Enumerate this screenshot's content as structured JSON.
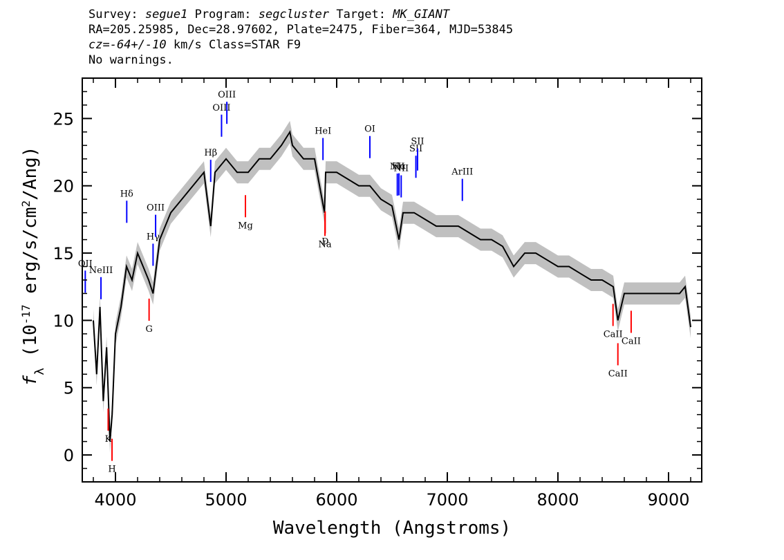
{
  "header": {
    "survey_label": "Survey:",
    "survey": "segue1",
    "program_label": "Program:",
    "program": "segcluster",
    "target_label": "Target:",
    "target": "MK_GIANT",
    "line2": "RA=205.25985, Dec=28.97602, Plate=2475, Fiber=364, MJD=53845",
    "cz_label": "cz=",
    "cz_value": "-64+/-10",
    "cz_rest": " km/s Class=STAR F9",
    "line4": "No warnings."
  },
  "chart_data": {
    "type": "line",
    "xlabel": "Wavelength (Angstroms)",
    "ylabel": "f_λ (10^-17 erg/s/cm^2/Ang)",
    "xlim": [
      3700,
      9300
    ],
    "ylim": [
      -2,
      28
    ],
    "xticks": [
      4000,
      5000,
      6000,
      7000,
      8000,
      9000
    ],
    "yticks": [
      0,
      5,
      10,
      15,
      20,
      25
    ],
    "grid": false,
    "colors": {
      "flux": "#000000",
      "error_band": "#c0c0c0",
      "emission": "#0000ff",
      "absorption": "#ff0000"
    },
    "series": [
      {
        "name": "flux",
        "x": [
          3800,
          3830,
          3860,
          3890,
          3920,
          3950,
          3970,
          4000,
          4050,
          4100,
          4150,
          4200,
          4250,
          4300,
          4340,
          4400,
          4450,
          4500,
          4600,
          4700,
          4800,
          4861,
          4900,
          5000,
          5100,
          5200,
          5300,
          5400,
          5500,
          5577,
          5600,
          5700,
          5800,
          5890,
          5900,
          6000,
          6100,
          6200,
          6300,
          6400,
          6500,
          6563,
          6600,
          6700,
          6800,
          6900,
          7000,
          7100,
          7200,
          7300,
          7400,
          7500,
          7600,
          7700,
          7800,
          7900,
          8000,
          8100,
          8200,
          8300,
          8400,
          8500,
          8542,
          8600,
          8700,
          8800,
          8900,
          9000,
          9100,
          9150,
          9200
        ],
        "y": [
          10,
          6,
          11,
          4,
          8,
          1,
          3,
          9,
          11,
          14,
          13,
          15,
          14,
          13,
          12,
          16,
          17,
          18,
          19,
          20,
          21,
          17,
          21,
          22,
          21,
          21,
          22,
          22,
          23,
          24,
          23,
          22,
          22,
          18,
          21,
          21,
          20.5,
          20,
          20,
          19,
          18.5,
          16,
          18,
          18,
          17.5,
          17,
          17,
          17,
          16.5,
          16,
          16,
          15.5,
          14,
          15,
          15,
          14.5,
          14,
          14,
          13.5,
          13,
          13,
          12.5,
          10,
          12,
          12,
          12,
          12,
          12,
          12,
          12.5,
          9.5
        ]
      }
    ],
    "emission_lines": [
      {
        "label": "OII",
        "wave": 3727
      },
      {
        "label": "NeIII",
        "wave": 3869
      },
      {
        "label": "Hδ",
        "wave": 4102
      },
      {
        "label": "Hγ",
        "wave": 4340
      },
      {
        "label": "OIII",
        "wave": 4363
      },
      {
        "label": "Hβ",
        "wave": 4861
      },
      {
        "label": "OIII",
        "wave": 4959
      },
      {
        "label": "OIII",
        "wave": 5007
      },
      {
        "label": "HeI",
        "wave": 5876
      },
      {
        "label": "OI",
        "wave": 6300
      },
      {
        "label": "NII",
        "wave": 6548
      },
      {
        "label": "Hα",
        "wave": 6563
      },
      {
        "label": "NII",
        "wave": 6583
      },
      {
        "label": "SII",
        "wave": 6716
      },
      {
        "label": "SII",
        "wave": 6731
      },
      {
        "label": "ArIII",
        "wave": 7136
      }
    ],
    "absorption_lines": [
      {
        "label": "K",
        "wave": 3934
      },
      {
        "label": "H",
        "wave": 3969
      },
      {
        "label": "G",
        "wave": 4304
      },
      {
        "label": "Mg",
        "wave": 5175
      },
      {
        "label": "Na",
        "wave": 5894
      },
      {
        "label": "D",
        "wave": 5896
      },
      {
        "label": "CaII",
        "wave": 8498
      },
      {
        "label": "CaII",
        "wave": 8542
      },
      {
        "label": "CaII",
        "wave": 8662
      }
    ]
  }
}
